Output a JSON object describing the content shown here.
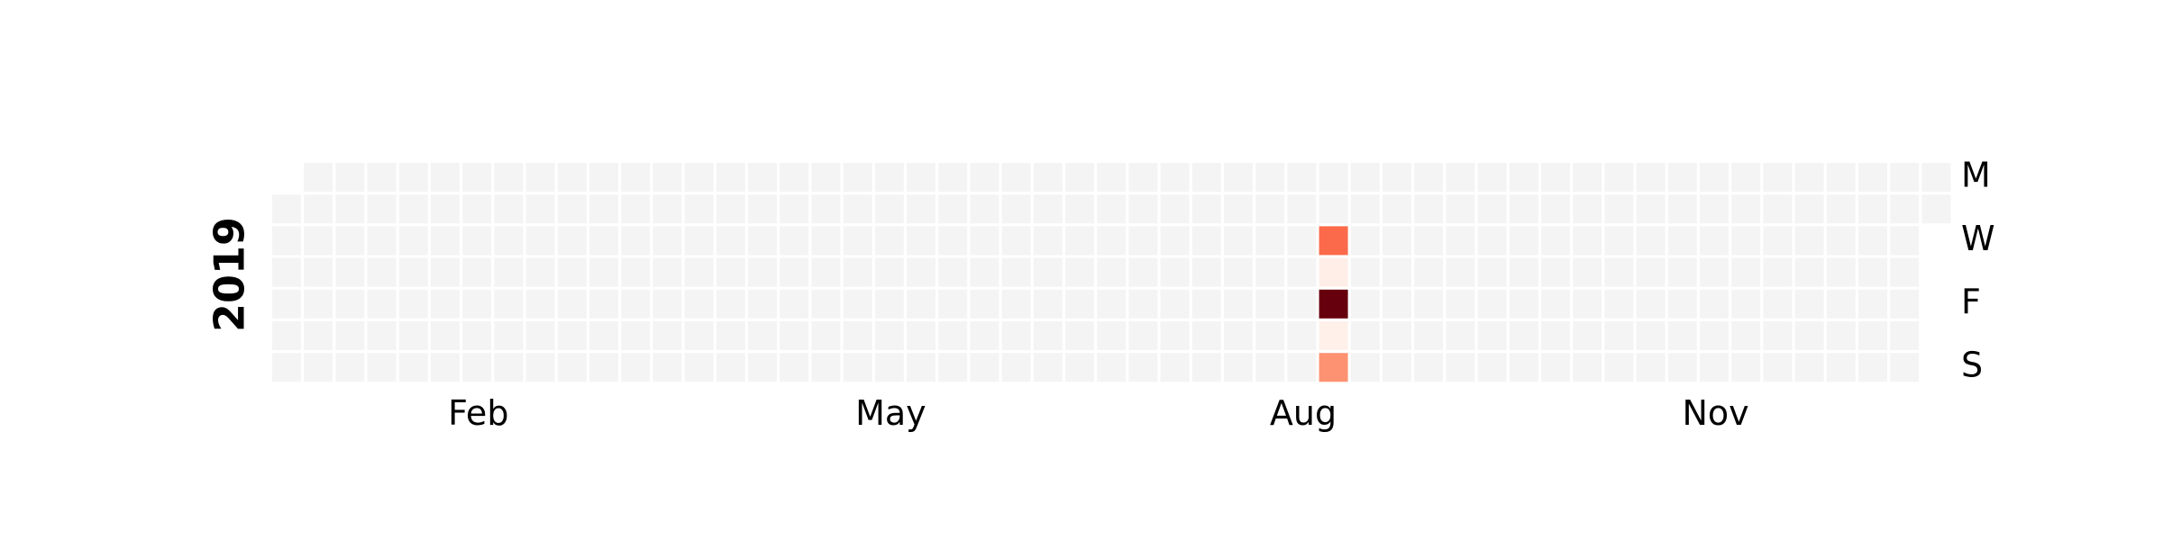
{
  "chart_data": {
    "type": "heatmap",
    "title": "",
    "year": "2019",
    "month_labels": [
      {
        "label": "Feb",
        "week": 6.5
      },
      {
        "label": "May",
        "week": 19.5
      },
      {
        "label": "Aug",
        "week": 32.5
      },
      {
        "label": "Nov",
        "week": 45.5
      }
    ],
    "weekday_labels": [
      {
        "label": "M",
        "day": 0
      },
      {
        "label": "W",
        "day": 2
      },
      {
        "label": "F",
        "day": 4
      },
      {
        "label": "S",
        "day": 6
      }
    ],
    "weeks": 53,
    "first_day_offset": 1,
    "days_in_year": 365,
    "colors": {
      "empty": "#f4f4f4",
      "grid_line": "#ffffff",
      "scale_low": "#fff5f0",
      "scale_mid_low": "#fc9272",
      "scale_mid": "#fb6a4a",
      "scale_high": "#67000d"
    },
    "value_range": [
      0,
      10
    ],
    "values": [
      {
        "date": "2019-08-21",
        "value": 6
      },
      {
        "date": "2019-08-22",
        "value": 0.3
      },
      {
        "date": "2019-08-23",
        "value": 10
      },
      {
        "date": "2019-08-24",
        "value": 0.2
      },
      {
        "date": "2019-08-25",
        "value": 4
      }
    ]
  }
}
